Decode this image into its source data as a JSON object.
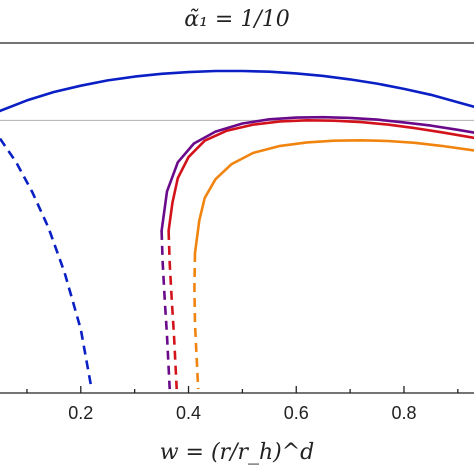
{
  "chart_data": {
    "type": "line",
    "title": "α̃₁ = 1/10",
    "xlabel": "w = (r/r_h)^d",
    "ylabel": "",
    "xlim": [
      0.05,
      0.93
    ],
    "ylim": [
      0,
      1
    ],
    "x_ticks": [
      0.2,
      0.4,
      0.6,
      0.8
    ],
    "x_tick_labels": [
      "0.2",
      "0.4",
      "0.6",
      "0.8"
    ],
    "reference_line_y": 0.779,
    "series": [
      {
        "color": "#0a1fc4",
        "solid": [
          [
            0.05,
            0.806
          ],
          [
            0.1,
            0.836
          ],
          [
            0.15,
            0.86
          ],
          [
            0.2,
            0.878
          ],
          [
            0.25,
            0.893
          ],
          [
            0.3,
            0.904
          ],
          [
            0.35,
            0.912
          ],
          [
            0.4,
            0.917
          ],
          [
            0.45,
            0.92
          ],
          [
            0.5,
            0.92
          ],
          [
            0.55,
            0.918
          ],
          [
            0.6,
            0.913
          ],
          [
            0.65,
            0.906
          ],
          [
            0.7,
            0.896
          ],
          [
            0.75,
            0.884
          ],
          [
            0.8,
            0.869
          ],
          [
            0.85,
            0.852
          ],
          [
            0.9,
            0.831
          ],
          [
            0.93,
            0.818
          ]
        ],
        "dashed": [
          [
            0.05,
            0.727
          ],
          [
            0.08,
            0.659
          ],
          [
            0.11,
            0.574
          ],
          [
            0.14,
            0.472
          ],
          [
            0.17,
            0.344
          ],
          [
            0.2,
            0.182
          ],
          [
            0.22,
            0.011
          ]
        ]
      },
      {
        "color": "#6a0a8a",
        "solid": [
          [
            0.35,
            0.463
          ],
          [
            0.36,
            0.576
          ],
          [
            0.38,
            0.659
          ],
          [
            0.41,
            0.713
          ],
          [
            0.45,
            0.747
          ],
          [
            0.5,
            0.77
          ],
          [
            0.55,
            0.782
          ],
          [
            0.6,
            0.787
          ],
          [
            0.65,
            0.788
          ],
          [
            0.7,
            0.786
          ],
          [
            0.75,
            0.781
          ],
          [
            0.8,
            0.773
          ],
          [
            0.85,
            0.764
          ],
          [
            0.9,
            0.752
          ],
          [
            0.93,
            0.744
          ]
        ],
        "dashed": [
          [
            0.35,
            0.463
          ],
          [
            0.352,
            0.371
          ],
          [
            0.356,
            0.264
          ],
          [
            0.36,
            0.164
          ],
          [
            0.365,
            0.011
          ]
        ]
      },
      {
        "color": "#d2131b",
        "solid": [
          [
            0.363,
            0.463
          ],
          [
            0.37,
            0.543
          ],
          [
            0.38,
            0.614
          ],
          [
            0.4,
            0.674
          ],
          [
            0.43,
            0.721
          ],
          [
            0.47,
            0.749
          ],
          [
            0.52,
            0.767
          ],
          [
            0.57,
            0.776
          ],
          [
            0.62,
            0.779
          ],
          [
            0.67,
            0.778
          ],
          [
            0.72,
            0.774
          ],
          [
            0.77,
            0.767
          ],
          [
            0.82,
            0.757
          ],
          [
            0.87,
            0.745
          ],
          [
            0.93,
            0.729
          ]
        ],
        "dashed": [
          [
            0.363,
            0.463
          ],
          [
            0.365,
            0.371
          ],
          [
            0.369,
            0.264
          ],
          [
            0.373,
            0.164
          ],
          [
            0.378,
            0.011
          ]
        ]
      },
      {
        "color": "#f0840f",
        "solid": [
          [
            0.412,
            0.4
          ],
          [
            0.42,
            0.493
          ],
          [
            0.43,
            0.557
          ],
          [
            0.45,
            0.611
          ],
          [
            0.48,
            0.654
          ],
          [
            0.52,
            0.686
          ],
          [
            0.57,
            0.706
          ],
          [
            0.62,
            0.716
          ],
          [
            0.67,
            0.721
          ],
          [
            0.72,
            0.722
          ],
          [
            0.77,
            0.72
          ],
          [
            0.82,
            0.715
          ],
          [
            0.87,
            0.706
          ],
          [
            0.93,
            0.693
          ]
        ],
        "dashed": [
          [
            0.412,
            0.4
          ],
          [
            0.411,
            0.301
          ],
          [
            0.412,
            0.196
          ],
          [
            0.415,
            0.103
          ],
          [
            0.418,
            0.011
          ]
        ]
      }
    ]
  }
}
